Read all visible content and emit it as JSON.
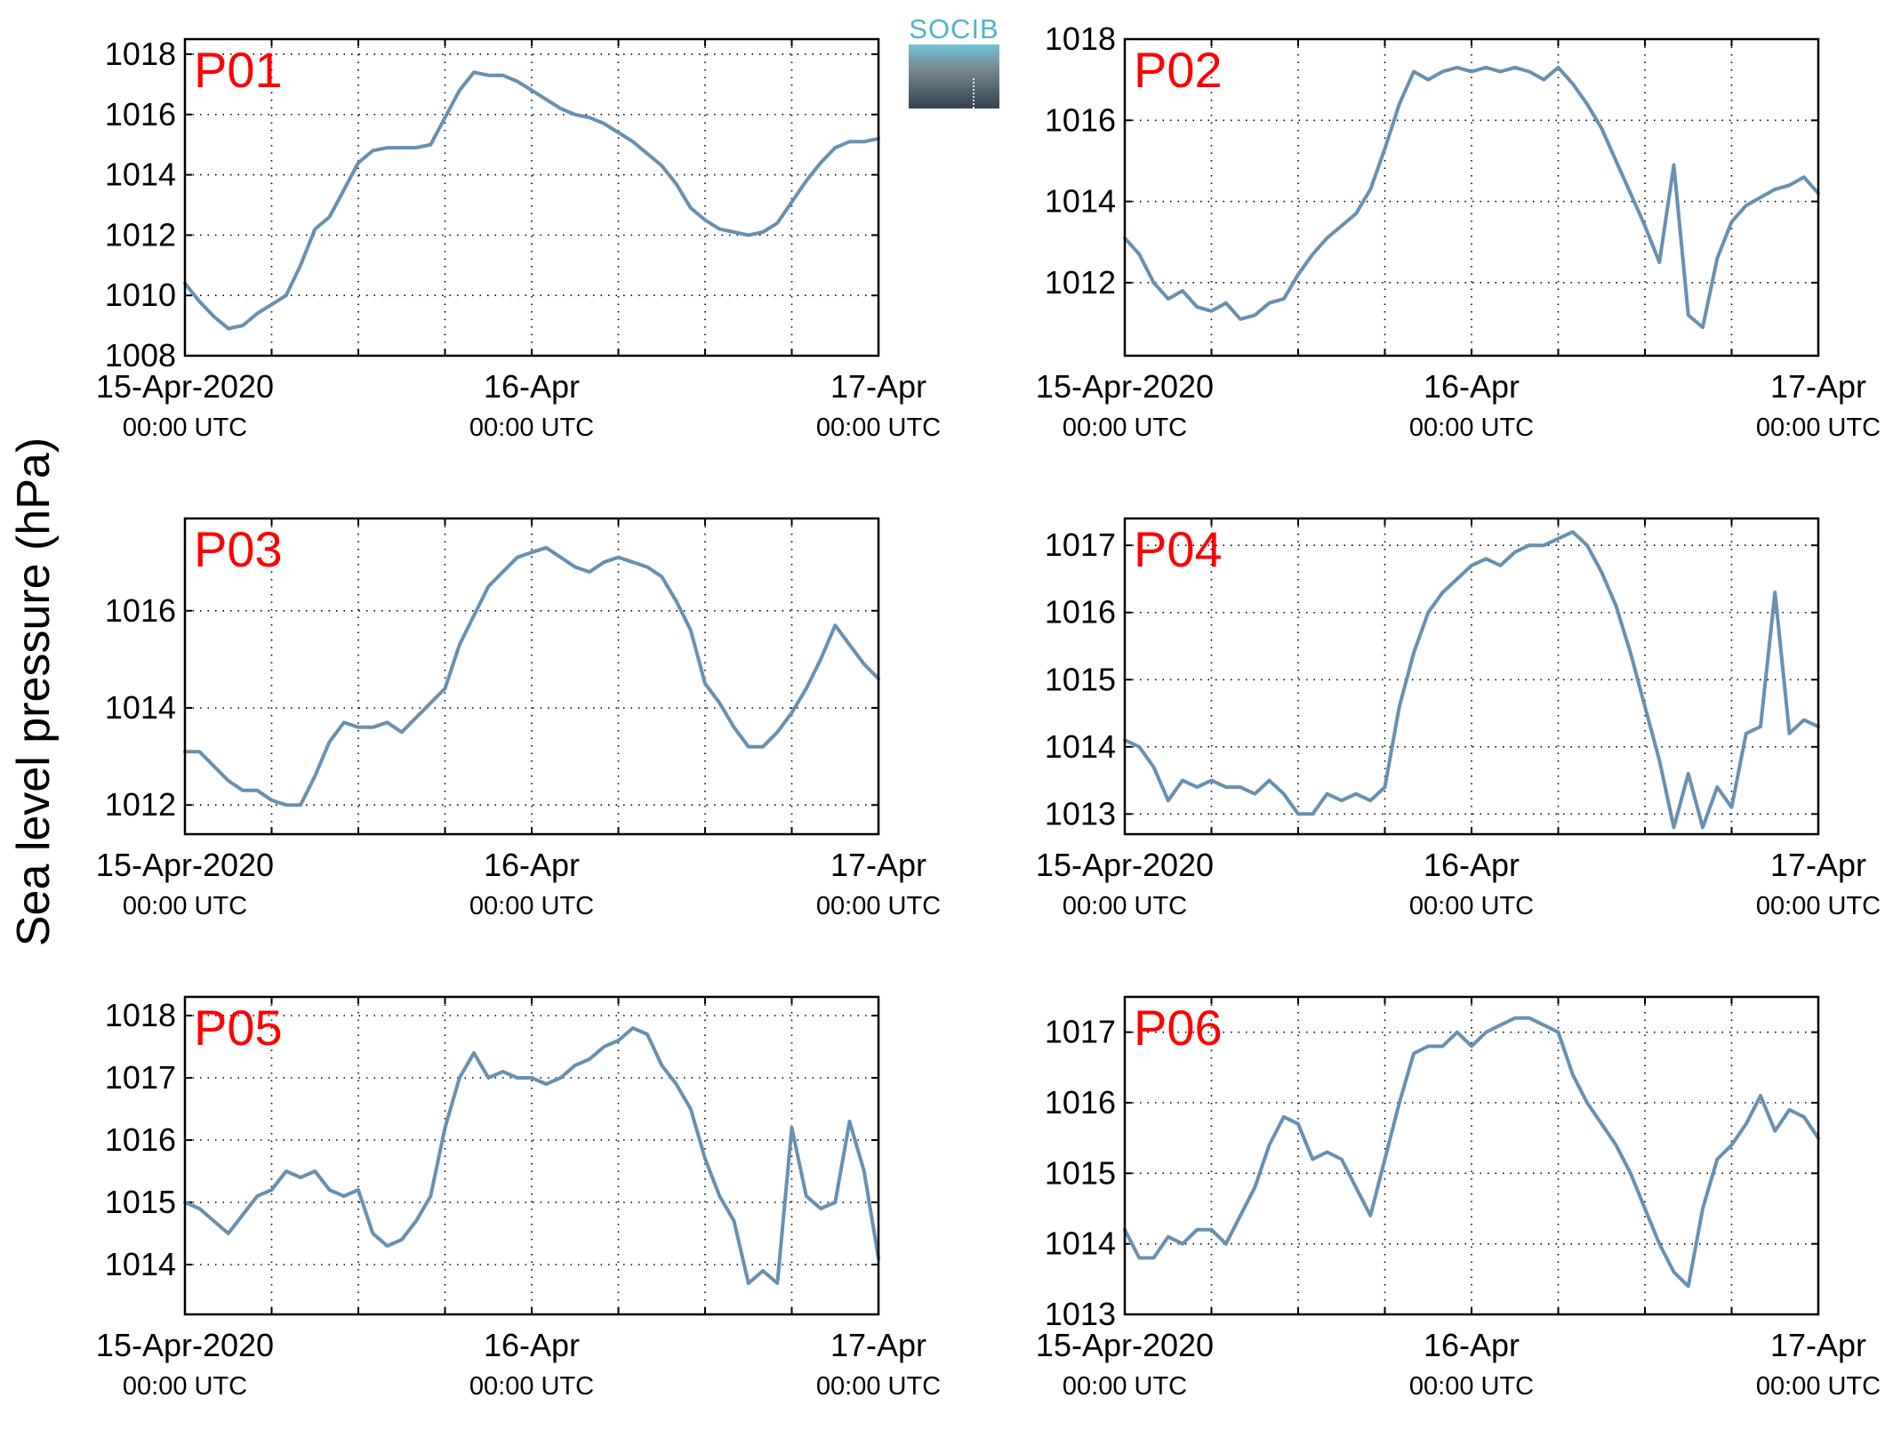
{
  "figure": {
    "ylabel": "Sea level pressure (hPa)",
    "line_color": "#6890b0",
    "title_color": "#ff0000",
    "logo_text": "SOCIB"
  },
  "chart_data": [
    {
      "type": "line",
      "title": "P01",
      "xticks": [
        {
          "line1": "15-Apr-2020",
          "line2": "00:00 UTC"
        },
        {
          "line1": "16-Apr",
          "line2": "00:00 UTC"
        },
        {
          "line1": "17-Apr",
          "line2": "00:00 UTC"
        }
      ],
      "xlim": [
        0,
        48
      ],
      "ylim": [
        1008,
        1018.5
      ],
      "yticks": [
        1008,
        1010,
        1012,
        1014,
        1016,
        1018
      ],
      "x": [
        0,
        1,
        2,
        3,
        4,
        5,
        6,
        7,
        8,
        9,
        10,
        11,
        12,
        13,
        14,
        15,
        16,
        17,
        18,
        19,
        20,
        21,
        22,
        23,
        24,
        25,
        26,
        27,
        28,
        29,
        30,
        31,
        32,
        33,
        34,
        35,
        36,
        37,
        38,
        39,
        40,
        41,
        42,
        43,
        44,
        45,
        46,
        47,
        48
      ],
      "y": [
        1010.4,
        1009.8,
        1009.3,
        1008.9,
        1009.0,
        1009.4,
        1009.7,
        1010.0,
        1011.0,
        1012.2,
        1012.6,
        1013.5,
        1014.4,
        1014.8,
        1014.9,
        1014.9,
        1014.9,
        1015.0,
        1015.9,
        1016.8,
        1017.4,
        1017.3,
        1017.3,
        1017.1,
        1016.8,
        1016.5,
        1016.2,
        1016.0,
        1015.9,
        1015.7,
        1015.4,
        1015.1,
        1014.7,
        1014.3,
        1013.7,
        1012.9,
        1012.5,
        1012.2,
        1012.1,
        1012.0,
        1012.1,
        1012.4,
        1013.1,
        1013.8,
        1014.4,
        1014.9,
        1015.1,
        1015.1,
        1015.2
      ]
    },
    {
      "type": "line",
      "title": "P02",
      "xticks": [
        {
          "line1": "15-Apr-2020",
          "line2": "00:00 UTC"
        },
        {
          "line1": "16-Apr",
          "line2": "00:00 UTC"
        },
        {
          "line1": "17-Apr",
          "line2": "00:00 UTC"
        }
      ],
      "xlim": [
        0,
        48
      ],
      "ylim": [
        1010.2,
        1018.0
      ],
      "yticks": [
        1012,
        1014,
        1016,
        1018
      ],
      "x": [
        0,
        1,
        2,
        3,
        4,
        5,
        6,
        7,
        8,
        9,
        10,
        11,
        12,
        13,
        14,
        15,
        16,
        17,
        18,
        19,
        20,
        21,
        22,
        23,
        24,
        25,
        26,
        27,
        28,
        29,
        30,
        31,
        32,
        33,
        34,
        35,
        36,
        37,
        38,
        39,
        40,
        41,
        42,
        43,
        44,
        45,
        46,
        47,
        48
      ],
      "y": [
        1013.1,
        1012.7,
        1012.0,
        1011.6,
        1011.8,
        1011.4,
        1011.3,
        1011.5,
        1011.1,
        1011.2,
        1011.5,
        1011.6,
        1012.2,
        1012.7,
        1013.1,
        1013.4,
        1013.7,
        1014.3,
        1015.3,
        1016.4,
        1017.2,
        1017.0,
        1017.2,
        1017.3,
        1017.2,
        1017.3,
        1017.2,
        1017.3,
        1017.2,
        1017.0,
        1017.3,
        1016.9,
        1016.4,
        1015.8,
        1015.0,
        1014.2,
        1013.4,
        1012.5,
        1014.9,
        1011.2,
        1010.9,
        1012.6,
        1013.5,
        1013.9,
        1014.1,
        1014.3,
        1014.4,
        1014.6,
        1014.2
      ]
    },
    {
      "type": "line",
      "title": "P03",
      "xticks": [
        {
          "line1": "15-Apr-2020",
          "line2": "00:00 UTC"
        },
        {
          "line1": "16-Apr",
          "line2": "00:00 UTC"
        },
        {
          "line1": "17-Apr",
          "line2": "00:00 UTC"
        }
      ],
      "xlim": [
        0,
        48
      ],
      "ylim": [
        1011.4,
        1017.9
      ],
      "yticks": [
        1012,
        1014,
        1016
      ],
      "x": [
        0,
        1,
        2,
        3,
        4,
        5,
        6,
        7,
        8,
        9,
        10,
        11,
        12,
        13,
        14,
        15,
        16,
        17,
        18,
        19,
        20,
        21,
        22,
        23,
        24,
        25,
        26,
        27,
        28,
        29,
        30,
        31,
        32,
        33,
        34,
        35,
        36,
        37,
        38,
        39,
        40,
        41,
        42,
        43,
        44,
        45,
        46,
        47,
        48
      ],
      "y": [
        1013.1,
        1013.1,
        1012.8,
        1012.5,
        1012.3,
        1012.3,
        1012.1,
        1012.0,
        1012.0,
        1012.6,
        1013.3,
        1013.7,
        1013.6,
        1013.6,
        1013.7,
        1013.5,
        1013.8,
        1014.1,
        1014.4,
        1015.3,
        1015.9,
        1016.5,
        1016.8,
        1017.1,
        1017.2,
        1017.3,
        1017.1,
        1016.9,
        1016.8,
        1017.0,
        1017.1,
        1017.0,
        1016.9,
        1016.7,
        1016.2,
        1015.6,
        1014.5,
        1014.1,
        1013.6,
        1013.2,
        1013.2,
        1013.5,
        1013.9,
        1014.4,
        1015.0,
        1015.7,
        1015.3,
        1014.9,
        1014.6
      ]
    },
    {
      "type": "line",
      "title": "P04",
      "xticks": [
        {
          "line1": "15-Apr-2020",
          "line2": "00:00 UTC"
        },
        {
          "line1": "16-Apr",
          "line2": "00:00 UTC"
        },
        {
          "line1": "17-Apr",
          "line2": "00:00 UTC"
        }
      ],
      "xlim": [
        0,
        48
      ],
      "ylim": [
        1012.7,
        1017.4
      ],
      "yticks": [
        1013,
        1014,
        1015,
        1016,
        1017
      ],
      "x": [
        0,
        1,
        2,
        3,
        4,
        5,
        6,
        7,
        8,
        9,
        10,
        11,
        12,
        13,
        14,
        15,
        16,
        17,
        18,
        19,
        20,
        21,
        22,
        23,
        24,
        25,
        26,
        27,
        28,
        29,
        30,
        31,
        32,
        33,
        34,
        35,
        36,
        37,
        38,
        39,
        40,
        41,
        42,
        43,
        44,
        45,
        46,
        47,
        48
      ],
      "y": [
        1014.1,
        1014.0,
        1013.7,
        1013.2,
        1013.5,
        1013.4,
        1013.5,
        1013.4,
        1013.4,
        1013.3,
        1013.5,
        1013.3,
        1013.0,
        1013.0,
        1013.3,
        1013.2,
        1013.3,
        1013.2,
        1013.4,
        1014.6,
        1015.4,
        1016.0,
        1016.3,
        1016.5,
        1016.7,
        1016.8,
        1016.7,
        1016.9,
        1017.0,
        1017.0,
        1017.1,
        1017.2,
        1017.0,
        1016.6,
        1016.1,
        1015.4,
        1014.6,
        1013.8,
        1012.8,
        1013.6,
        1012.8,
        1013.4,
        1013.1,
        1014.2,
        1014.3,
        1016.3,
        1014.2,
        1014.4,
        1014.3
      ]
    },
    {
      "type": "line",
      "title": "P05",
      "xticks": [
        {
          "line1": "15-Apr-2020",
          "line2": "00:00 UTC"
        },
        {
          "line1": "16-Apr",
          "line2": "00:00 UTC"
        },
        {
          "line1": "17-Apr",
          "line2": "00:00 UTC"
        }
      ],
      "xlim": [
        0,
        48
      ],
      "ylim": [
        1013.2,
        1018.3
      ],
      "yticks": [
        1014,
        1015,
        1016,
        1017,
        1018
      ],
      "x": [
        0,
        1,
        2,
        3,
        4,
        5,
        6,
        7,
        8,
        9,
        10,
        11,
        12,
        13,
        14,
        15,
        16,
        17,
        18,
        19,
        20,
        21,
        22,
        23,
        24,
        25,
        26,
        27,
        28,
        29,
        30,
        31,
        32,
        33,
        34,
        35,
        36,
        37,
        38,
        39,
        40,
        41,
        42,
        43,
        44,
        45,
        46,
        47,
        48
      ],
      "y": [
        1015.0,
        1014.9,
        1014.7,
        1014.5,
        1014.8,
        1015.1,
        1015.2,
        1015.5,
        1015.4,
        1015.5,
        1015.2,
        1015.1,
        1015.2,
        1014.5,
        1014.3,
        1014.4,
        1014.7,
        1015.1,
        1016.2,
        1017.0,
        1017.4,
        1017.0,
        1017.1,
        1017.0,
        1017.0,
        1016.9,
        1017.0,
        1017.2,
        1017.3,
        1017.5,
        1017.6,
        1017.8,
        1017.7,
        1017.2,
        1016.9,
        1016.5,
        1015.7,
        1015.1,
        1014.7,
        1013.7,
        1013.9,
        1013.7,
        1016.2,
        1015.1,
        1014.9,
        1015.0,
        1016.3,
        1015.5,
        1014.1
      ]
    },
    {
      "type": "line",
      "title": "P06",
      "xticks": [
        {
          "line1": "15-Apr-2020",
          "line2": "00:00 UTC"
        },
        {
          "line1": "16-Apr",
          "line2": "00:00 UTC"
        },
        {
          "line1": "17-Apr",
          "line2": "00:00 UTC"
        }
      ],
      "xlim": [
        0,
        48
      ],
      "ylim": [
        1013.0,
        1017.5
      ],
      "yticks": [
        1013,
        1014,
        1015,
        1016,
        1017
      ],
      "x": [
        0,
        1,
        2,
        3,
        4,
        5,
        6,
        7,
        8,
        9,
        10,
        11,
        12,
        13,
        14,
        15,
        16,
        17,
        18,
        19,
        20,
        21,
        22,
        23,
        24,
        25,
        26,
        27,
        28,
        29,
        30,
        31,
        32,
        33,
        34,
        35,
        36,
        37,
        38,
        39,
        40,
        41,
        42,
        43,
        44,
        45,
        46,
        47,
        48
      ],
      "y": [
        1014.2,
        1013.8,
        1013.8,
        1014.1,
        1014.0,
        1014.2,
        1014.2,
        1014.0,
        1014.4,
        1014.8,
        1015.4,
        1015.8,
        1015.7,
        1015.2,
        1015.3,
        1015.2,
        1014.8,
        1014.4,
        1015.2,
        1016.0,
        1016.7,
        1016.8,
        1016.8,
        1017.0,
        1016.8,
        1017.0,
        1017.1,
        1017.2,
        1017.2,
        1017.1,
        1017.0,
        1016.4,
        1016.0,
        1015.7,
        1015.4,
        1015.0,
        1014.5,
        1014.0,
        1013.6,
        1013.4,
        1014.5,
        1015.2,
        1015.4,
        1015.7,
        1016.1,
        1015.6,
        1015.9,
        1015.8,
        1015.5
      ]
    }
  ]
}
